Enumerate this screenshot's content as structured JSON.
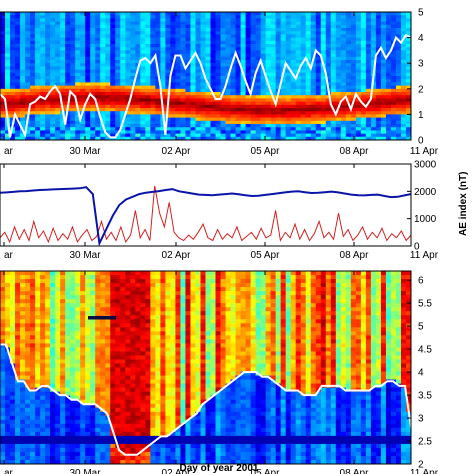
{
  "chart_data": [
    {
      "type": "heatmap",
      "x_tick_labels": [
        "ar",
        "30 Mar",
        "02 Apr",
        "05 Apr",
        "08 Apr",
        "11 Apr"
      ],
      "y_tick_labels": [
        "0",
        "1",
        "2",
        "3",
        "4",
        "5"
      ],
      "ylim": [
        0,
        5
      ],
      "overlay_series": {
        "color": "#ffffff",
        "values": [
          1.8,
          1.6,
          0.1,
          1.0,
          0.6,
          0.2,
          1.4,
          1.5,
          1.7,
          1.6,
          1.9,
          2.1,
          1.8,
          0.6,
          1.9,
          1.7,
          0.8,
          1.4,
          1.8,
          1.6,
          0.9,
          0.3,
          0.1,
          0.1,
          0.4,
          1.0,
          1.6,
          2.4,
          3.1,
          3.2,
          3.0,
          3.3,
          2.1,
          0.2,
          2.5,
          3.3,
          3.3,
          2.8,
          3.1,
          3.4,
          3.0,
          2.4,
          2.0,
          1.6,
          1.6,
          2.1,
          2.8,
          3.4,
          2.9,
          2.3,
          1.8,
          2.6,
          3.1,
          2.5,
          1.9,
          1.4,
          2.2,
          3.0,
          2.7,
          2.4,
          2.9,
          3.2,
          2.8,
          3.5,
          3.3,
          2.6,
          1.4,
          1.0,
          1.5,
          1.7,
          1.2,
          1.8,
          1.5,
          1.3,
          1.6,
          3.3,
          3.6,
          3.2,
          3.5,
          4.0,
          3.8,
          4.1,
          4.0
        ]
      }
    },
    {
      "type": "line",
      "x_tick_labels": [
        "ar",
        "30 Mar",
        "02 Apr",
        "05 Apr",
        "08 Apr",
        "11 Apr"
      ],
      "y_tick_labels": [
        "0",
        "1000",
        "2000",
        "3000"
      ],
      "ylim": [
        0,
        3000
      ],
      "ylabel": "AE index (nT)",
      "series": [
        {
          "color": "#0a14a8",
          "values": [
            1950,
            1960,
            1980,
            2000,
            2010,
            2030,
            2050,
            2060,
            2070,
            2080,
            2090,
            2100,
            2110,
            2150,
            1900,
            100,
            600,
            1100,
            1500,
            1700,
            1800,
            1900,
            1950,
            1980,
            2010,
            2050,
            2080,
            2000,
            1960,
            1920,
            1880,
            1870,
            1860,
            1880,
            1900,
            1920,
            1890,
            1860,
            1830,
            1840,
            1870,
            1900,
            1930,
            1960,
            1990,
            2000,
            1970,
            1940,
            1950,
            1970,
            1990,
            1960,
            1920,
            1880,
            1860,
            1850,
            1870,
            1880,
            1830,
            1790,
            1800,
            1850,
            1900
          ]
        },
        {
          "color": "#d42020",
          "values": [
            300,
            500,
            150,
            700,
            250,
            600,
            200,
            900,
            300,
            550,
            150,
            650,
            200,
            450,
            250,
            700,
            150,
            400,
            600,
            200,
            350,
            900,
            250,
            500,
            200,
            700,
            150,
            400,
            1300,
            300,
            600,
            200,
            2200,
            1200,
            700,
            1600,
            500,
            300,
            200,
            400,
            250,
            500,
            800,
            300,
            200,
            600,
            250,
            450,
            300,
            700,
            200,
            350,
            500,
            250,
            650,
            300,
            400,
            1300,
            200,
            500,
            300,
            800,
            250,
            600,
            200,
            450,
            900,
            300,
            500,
            250,
            1200,
            350,
            600,
            200,
            400,
            700,
            250,
            500,
            300,
            650,
            200,
            450,
            300,
            550,
            200,
            400
          ]
        }
      ]
    },
    {
      "type": "heatmap",
      "x_tick_labels": [
        "ar",
        "30 Mar",
        "02 Apr",
        "05 Apr",
        "08 Apr",
        "11 Apr"
      ],
      "y_tick_labels": [
        "2",
        "2.5",
        "3",
        "3.5",
        "4",
        "4.5",
        "5",
        "5.5",
        "6"
      ],
      "ylim": [
        2,
        6.2
      ],
      "xlabel": "Day of year 2001",
      "overlay_series": {
        "color": "#ffffff",
        "values": [
          4.6,
          4.6,
          4.2,
          3.8,
          3.8,
          3.6,
          3.6,
          3.7,
          3.7,
          3.6,
          3.5,
          3.5,
          3.4,
          3.4,
          3.3,
          3.3,
          3.3,
          3.2,
          3.1,
          2.7,
          2.3,
          2.2,
          2.2,
          2.2,
          2.3,
          2.4,
          2.5,
          2.6,
          2.6,
          2.7,
          2.8,
          2.9,
          3.0,
          3.1,
          3.3,
          3.4,
          3.5,
          3.6,
          3.7,
          3.8,
          3.9,
          4.0,
          4.0,
          4.0,
          3.9,
          3.9,
          3.8,
          3.7,
          3.6,
          3.6,
          3.6,
          3.5,
          3.5,
          3.5,
          3.7,
          3.7,
          3.7,
          3.7,
          3.6,
          3.6,
          3.6,
          3.6,
          3.6,
          3.7,
          3.7,
          3.8,
          3.8,
          3.7,
          3.7,
          2.8
        ]
      }
    }
  ]
}
